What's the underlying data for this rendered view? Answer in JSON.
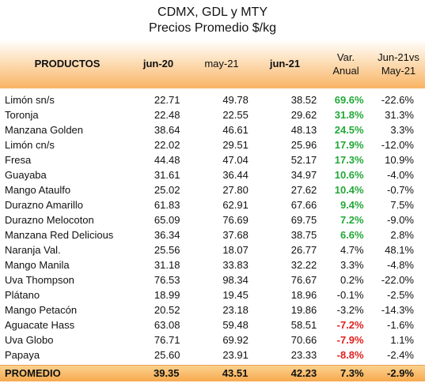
{
  "title": "CDMX, GDL y MTY",
  "subtitle": "Precios Promedio $/kg",
  "headers": {
    "producto": "PRODUCTOS",
    "jun20": "jun-20",
    "may21": "may-21",
    "jun21": "jun-21",
    "var_l1": "Var.",
    "var_l2": "Anual",
    "cmp_l1": "Jun-21vs",
    "cmp_l2": "May-21"
  },
  "rows": [
    {
      "name": "Limón sn/s",
      "jun20": "22.71",
      "may21": "49.78",
      "jun21": "38.52",
      "var": "69.6%",
      "cmp": "-22.6%",
      "var_tone": "pos"
    },
    {
      "name": "Toronja",
      "jun20": "22.48",
      "may21": "22.55",
      "jun21": "29.62",
      "var": "31.8%",
      "cmp": "31.3%",
      "var_tone": "pos"
    },
    {
      "name": "Manzana Golden",
      "jun20": "38.64",
      "may21": "46.61",
      "jun21": "48.13",
      "var": "24.5%",
      "cmp": "3.3%",
      "var_tone": "pos"
    },
    {
      "name": "Limón cn/s",
      "jun20": "22.02",
      "may21": "29.51",
      "jun21": "25.96",
      "var": "17.9%",
      "cmp": "-12.0%",
      "var_tone": "pos"
    },
    {
      "name": "Fresa",
      "jun20": "44.48",
      "may21": "47.04",
      "jun21": "52.17",
      "var": "17.3%",
      "cmp": "10.9%",
      "var_tone": "pos"
    },
    {
      "name": "Guayaba",
      "jun20": "31.61",
      "may21": "36.44",
      "jun21": "34.97",
      "var": "10.6%",
      "cmp": "-4.0%",
      "var_tone": "pos"
    },
    {
      "name": "Mango Ataulfo",
      "jun20": "25.02",
      "may21": "27.80",
      "jun21": "27.62",
      "var": "10.4%",
      "cmp": "-0.7%",
      "var_tone": "pos"
    },
    {
      "name": "Durazno Amarillo",
      "jun20": "61.83",
      "may21": "62.91",
      "jun21": "67.66",
      "var": "9.4%",
      "cmp": "7.5%",
      "var_tone": "pos"
    },
    {
      "name": "Durazno Melocoton",
      "jun20": "65.09",
      "may21": "76.69",
      "jun21": "69.75",
      "var": "7.2%",
      "cmp": "-9.0%",
      "var_tone": "pos"
    },
    {
      "name": "Manzana Red Delicious",
      "jun20": "36.34",
      "may21": "37.68",
      "jun21": "38.75",
      "var": "6.6%",
      "cmp": "2.8%",
      "var_tone": "pos"
    },
    {
      "name": "Naranja Val.",
      "jun20": "25.56",
      "may21": "18.07",
      "jun21": "26.77",
      "var": "4.7%",
      "cmp": "48.1%",
      "var_tone": "plain"
    },
    {
      "name": "Mango Manila",
      "jun20": "31.18",
      "may21": "33.83",
      "jun21": "32.22",
      "var": "3.3%",
      "cmp": "-4.8%",
      "var_tone": "plain"
    },
    {
      "name": "Uva Thompson",
      "jun20": "76.53",
      "may21": "98.34",
      "jun21": "76.67",
      "var": "0.2%",
      "cmp": "-22.0%",
      "var_tone": "plain"
    },
    {
      "name": "Plátano",
      "jun20": "18.99",
      "may21": "19.45",
      "jun21": "18.96",
      "var": "-0.1%",
      "cmp": "-2.5%",
      "var_tone": "plain"
    },
    {
      "name": "Mango Petacón",
      "jun20": "20.52",
      "may21": "23.18",
      "jun21": "19.86",
      "var": "-3.2%",
      "cmp": "-14.3%",
      "var_tone": "plain"
    },
    {
      "name": "Aguacate Hass",
      "jun20": "63.08",
      "may21": "59.48",
      "jun21": "58.51",
      "var": "-7.2%",
      "cmp": "-1.6%",
      "var_tone": "neg"
    },
    {
      "name": "Uva Globo",
      "jun20": "76.71",
      "may21": "69.92",
      "jun21": "70.66",
      "var": "-7.9%",
      "cmp": "1.1%",
      "var_tone": "neg"
    },
    {
      "name": "Papaya",
      "jun20": "25.60",
      "may21": "23.91",
      "jun21": "23.33",
      "var": "-8.8%",
      "cmp": "-2.4%",
      "var_tone": "neg"
    }
  ],
  "footer": {
    "name": "PROMEDIO",
    "jun20": "39.35",
    "may21": "43.51",
    "jun21": "42.23",
    "var": "7.3%",
    "cmp": "-2.9%"
  },
  "colors": {
    "positive": "#22a838",
    "negative": "#e02020",
    "header_band": "#f9b464"
  }
}
